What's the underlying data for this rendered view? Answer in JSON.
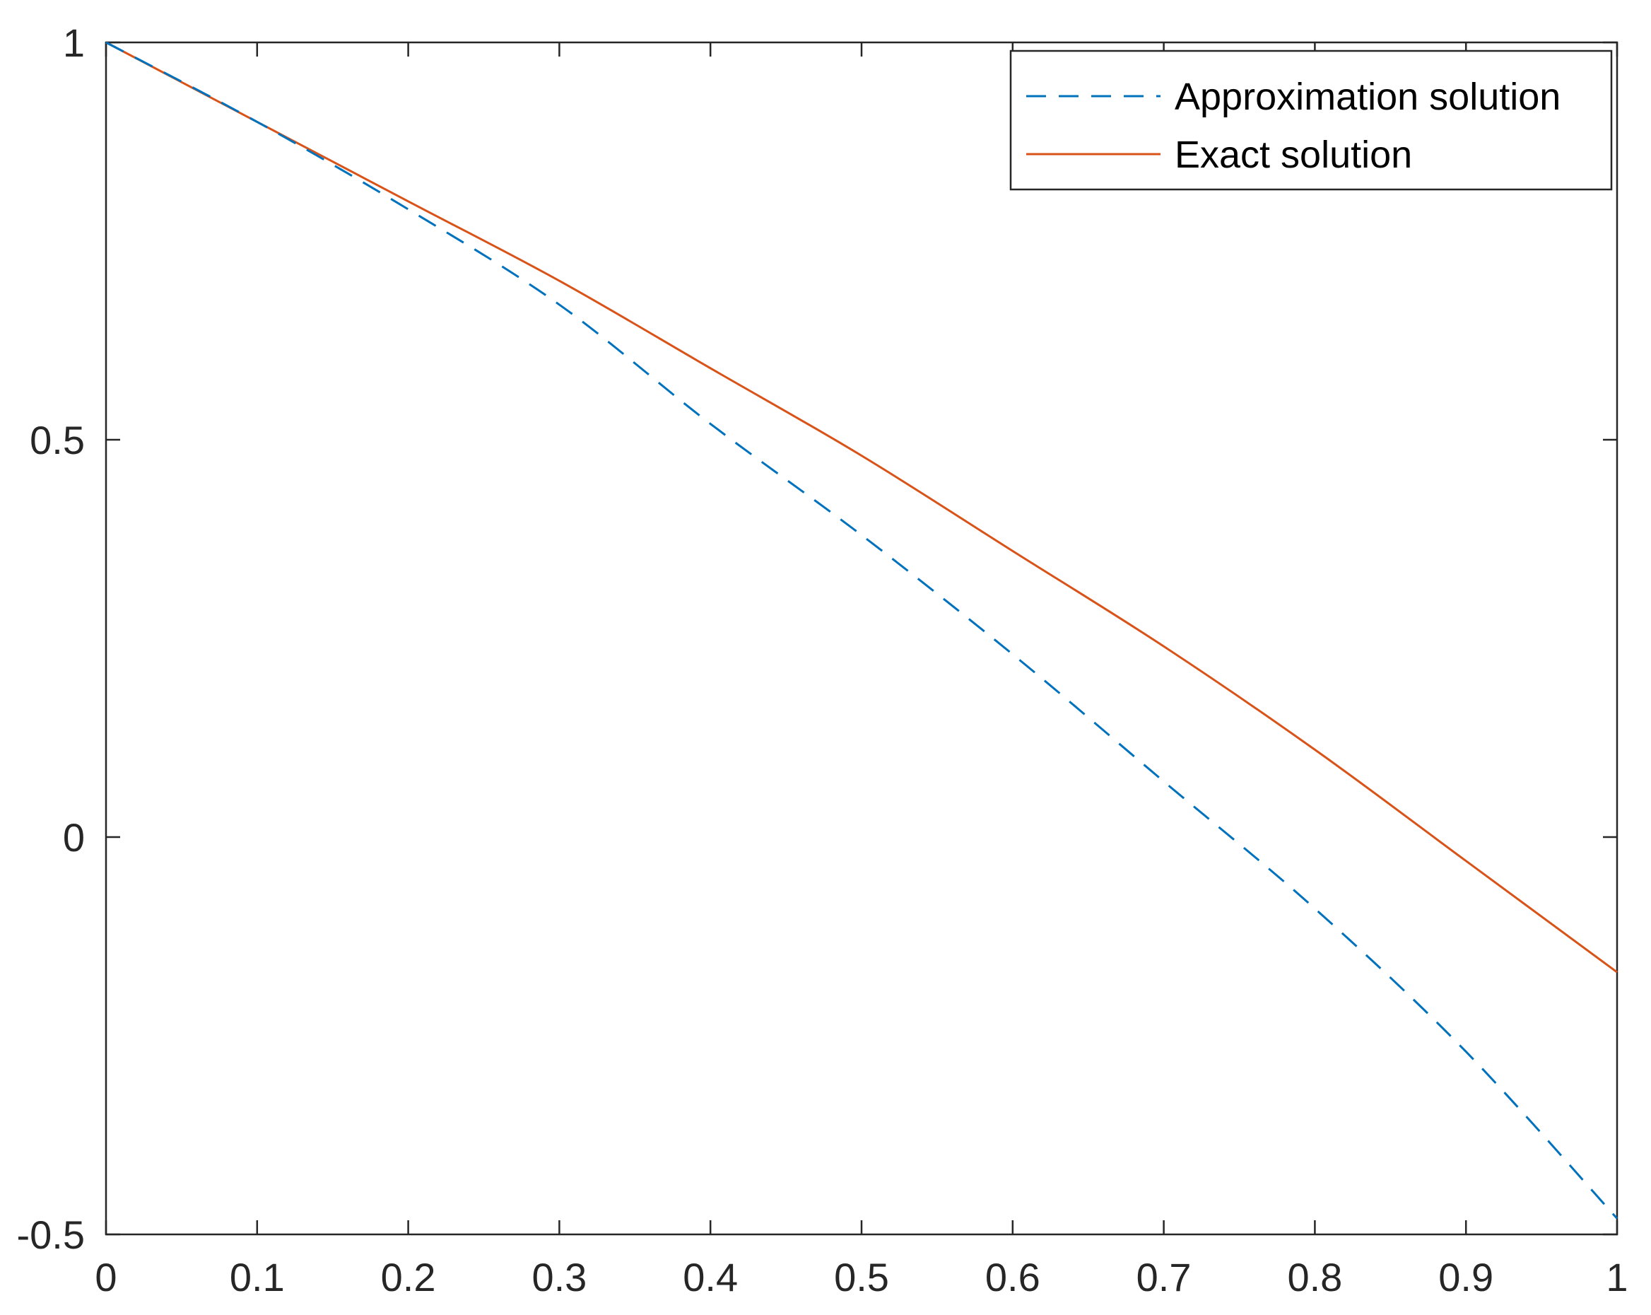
{
  "chart_data": {
    "type": "line",
    "title": "",
    "xlabel": "",
    "ylabel": "",
    "xlim": [
      0,
      1
    ],
    "ylim": [
      -0.5,
      1
    ],
    "xticks": [
      0,
      0.1,
      0.2,
      0.3,
      0.4,
      0.5,
      0.6,
      0.7,
      0.8,
      0.9,
      1
    ],
    "xtick_labels": [
      "0",
      "0.1",
      "0.2",
      "0.3",
      "0.4",
      "0.5",
      "0.6",
      "0.7",
      "0.8",
      "0.9",
      "1"
    ],
    "yticks": [
      -0.5,
      0,
      0.5,
      1
    ],
    "ytick_labels": [
      "-0.5",
      "0",
      "0.5",
      "1"
    ],
    "grid": false,
    "legend": "top-right",
    "series": [
      {
        "name": "Approximation solution",
        "style": "dashed",
        "color": "#0072BD",
        "x": [
          0,
          0.1,
          0.2,
          0.3,
          0.4,
          0.5,
          0.6,
          0.7,
          0.8,
          0.9,
          1
        ],
        "y": [
          1,
          0.9,
          0.79,
          0.67,
          0.52,
          0.38,
          0.23,
          0.07,
          -0.09,
          -0.27,
          -0.48
        ]
      },
      {
        "name": "Exact solution",
        "style": "solid",
        "color": "#D95319",
        "x": [
          0,
          0.1,
          0.2,
          0.3,
          0.4,
          0.5,
          0.6,
          0.7,
          0.8,
          0.9,
          1
        ],
        "y": [
          1,
          0.9,
          0.8,
          0.7,
          0.59,
          0.48,
          0.36,
          0.24,
          0.11,
          -0.03,
          -0.17
        ]
      }
    ]
  }
}
